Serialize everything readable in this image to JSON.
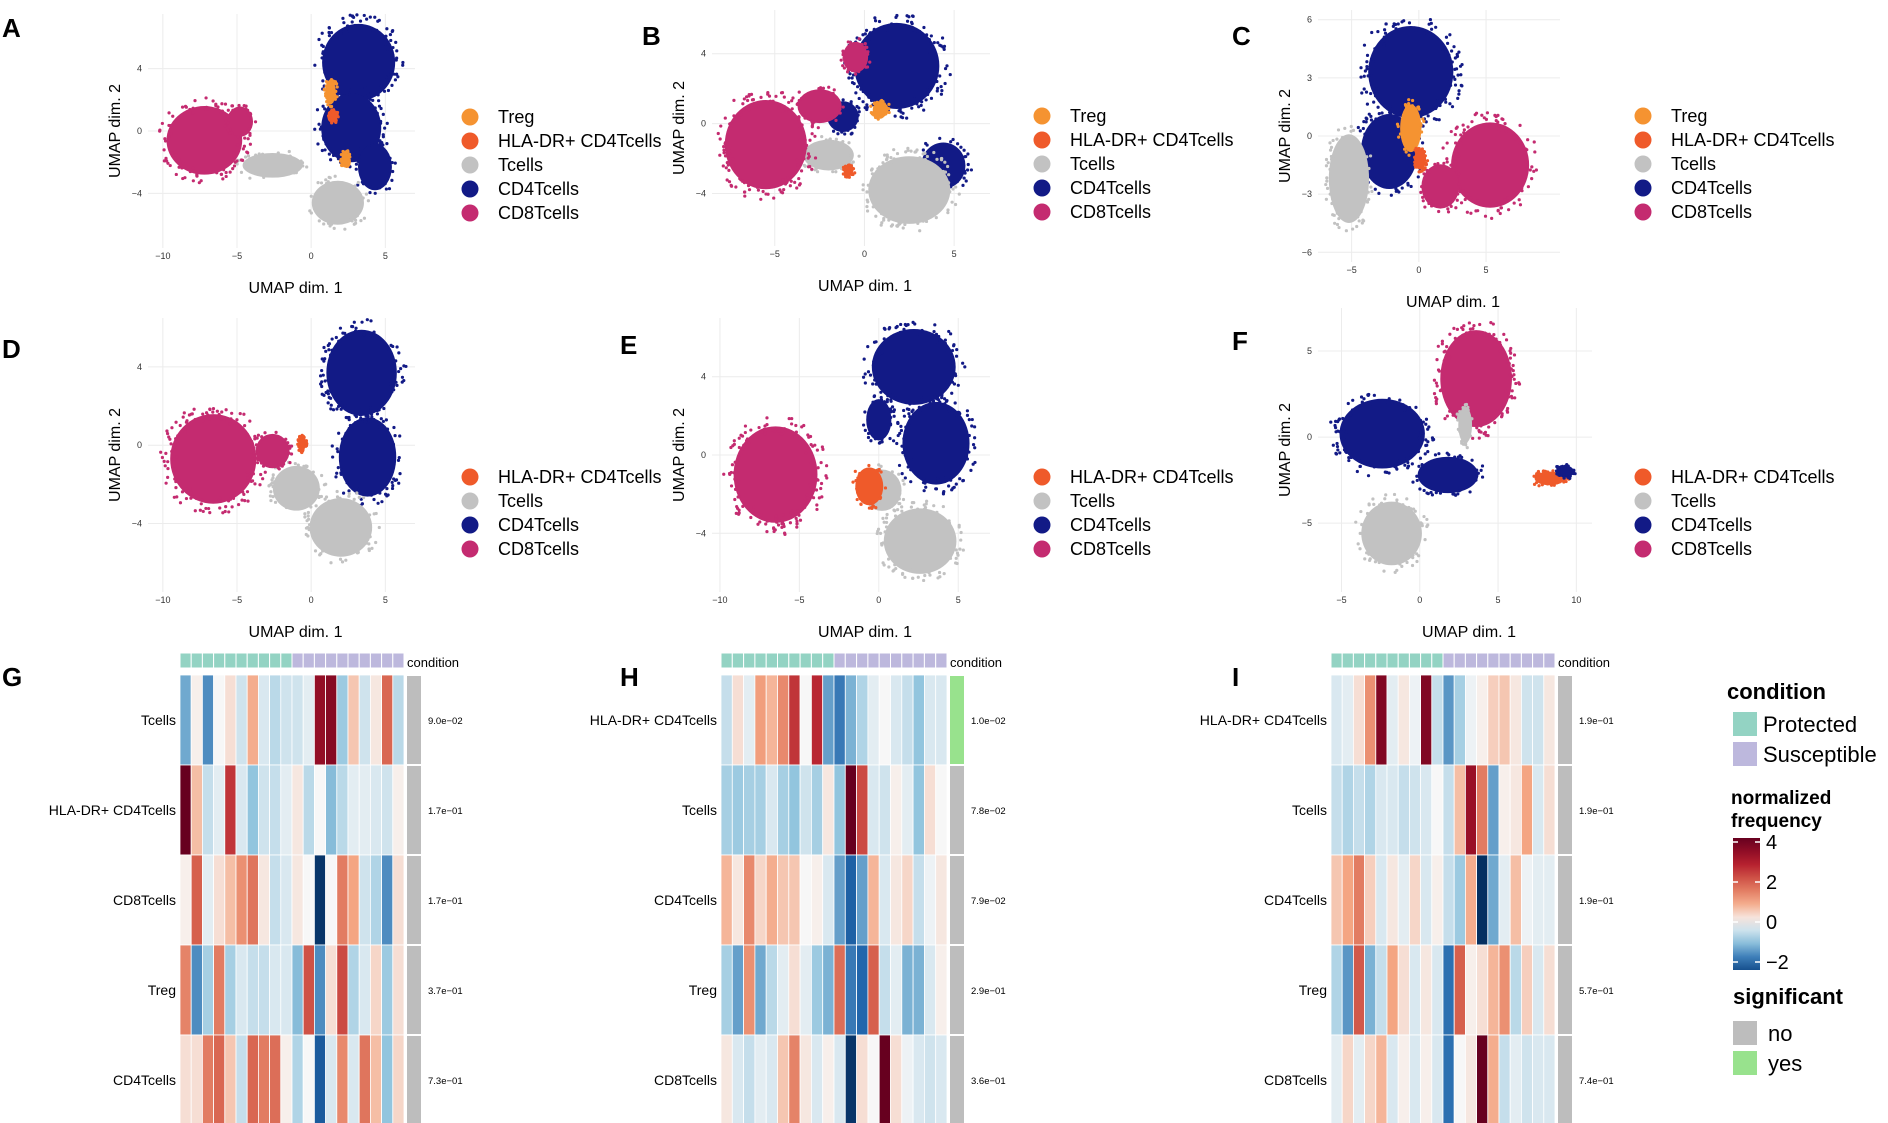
{
  "colors": {
    "Treg": "#F59331",
    "HLA-DR+ CD4Tcells": "#EF5A2A",
    "Tcells": "#C2C2C2",
    "CD4Tcells": "#121A86",
    "CD8Tcells": "#C42B70",
    "Protected": "#93D3C3",
    "Susceptible": "#BDB8DD",
    "sig_no": "#BDBDBD",
    "sig_yes": "#98E28D"
  },
  "chart_data": [
    {
      "panel": "A",
      "type": "scatter",
      "xlabel": "UMAP dim. 1",
      "ylabel": "UMAP dim. 2",
      "xlim": [
        -11,
        7
      ],
      "ylim": [
        -7.5,
        7.5
      ],
      "xticks": [
        -10,
        -5,
        0,
        5
      ],
      "yticks": [
        -4,
        0,
        4
      ],
      "legend": [
        "Treg",
        "HLA-DR+ CD4Tcells",
        "Tcells",
        "CD4Tcells",
        "CD8Tcells"
      ],
      "clusters": [
        {
          "celltype": "CD4Tcells",
          "x": 3.2,
          "y": 4.4,
          "rx": 2.8,
          "ry": 2.8
        },
        {
          "celltype": "CD4Tcells",
          "x": 2.7,
          "y": 0.2,
          "rx": 2.3,
          "ry": 2.5
        },
        {
          "celltype": "CD4Tcells",
          "x": 4.3,
          "y": -2.3,
          "rx": 1.3,
          "ry": 1.7
        },
        {
          "celltype": "Tcells",
          "x": 1.8,
          "y": -4.6,
          "rx": 2.0,
          "ry": 1.6
        },
        {
          "celltype": "Tcells",
          "x": -2.6,
          "y": -2.2,
          "rx": 2.3,
          "ry": 0.9
        },
        {
          "celltype": "CD8Tcells",
          "x": -7.2,
          "y": -0.6,
          "rx": 2.9,
          "ry": 2.5
        },
        {
          "celltype": "CD8Tcells",
          "x": -4.8,
          "y": 0.6,
          "rx": 1.0,
          "ry": 1.1
        },
        {
          "celltype": "Treg",
          "x": 1.3,
          "y": 2.5,
          "rx": 0.4,
          "ry": 0.9
        },
        {
          "celltype": "Treg",
          "x": 2.3,
          "y": -1.8,
          "rx": 0.3,
          "ry": 0.5
        },
        {
          "celltype": "HLA-DR+ CD4Tcells",
          "x": 1.5,
          "y": 0.9,
          "rx": 0.3,
          "ry": 0.4
        }
      ]
    },
    {
      "panel": "B",
      "type": "scatter",
      "xlabel": "UMAP dim. 1",
      "ylabel": "UMAP dim. 2",
      "xlim": [
        -8.5,
        7
      ],
      "ylim": [
        -7,
        6.5
      ],
      "xticks": [
        -5,
        0,
        5
      ],
      "yticks": [
        -4,
        0,
        4
      ],
      "legend": [
        "Treg",
        "HLA-DR+ CD4Tcells",
        "Tcells",
        "CD4Tcells",
        "CD8Tcells"
      ],
      "clusters": [
        {
          "celltype": "CD4Tcells",
          "x": 1.8,
          "y": 3.3,
          "rx": 2.7,
          "ry": 2.8
        },
        {
          "celltype": "CD4Tcells",
          "x": 4.4,
          "y": -2.4,
          "rx": 1.4,
          "ry": 1.5
        },
        {
          "celltype": "CD4Tcells",
          "x": -1.2,
          "y": 0.4,
          "rx": 1.0,
          "ry": 1.0
        },
        {
          "celltype": "Tcells",
          "x": 2.5,
          "y": -3.8,
          "rx": 2.6,
          "ry": 2.2
        },
        {
          "celltype": "Tcells",
          "x": -2.0,
          "y": -1.8,
          "rx": 1.6,
          "ry": 1.0
        },
        {
          "celltype": "CD8Tcells",
          "x": -5.5,
          "y": -1.2,
          "rx": 2.6,
          "ry": 2.9
        },
        {
          "celltype": "CD8Tcells",
          "x": -2.5,
          "y": 1.0,
          "rx": 1.4,
          "ry": 1.1
        },
        {
          "celltype": "CD8Tcells",
          "x": -0.5,
          "y": 3.8,
          "rx": 0.8,
          "ry": 1.0
        },
        {
          "celltype": "Treg",
          "x": 0.9,
          "y": 0.8,
          "rx": 0.5,
          "ry": 0.5
        },
        {
          "celltype": "HLA-DR+ CD4Tcells",
          "x": -0.9,
          "y": -2.7,
          "rx": 0.3,
          "ry": 0.3
        }
      ]
    },
    {
      "panel": "C",
      "type": "scatter",
      "xlabel": "UMAP dim. 1",
      "ylabel": "UMAP dim. 2",
      "xlim": [
        -7.5,
        10.5
      ],
      "ylim": [
        -6.5,
        6.5
      ],
      "xticks": [
        -5,
        0,
        5
      ],
      "yticks": [
        -6,
        -3,
        0,
        3,
        6
      ],
      "legend": [
        "Treg",
        "HLA-DR+ CD4Tcells",
        "Tcells",
        "CD4Tcells",
        "CD8Tcells"
      ],
      "clusters": [
        {
          "celltype": "CD4Tcells",
          "x": -0.6,
          "y": 3.3,
          "rx": 3.6,
          "ry": 2.7
        },
        {
          "celltype": "CD4Tcells",
          "x": -2.2,
          "y": -0.8,
          "rx": 2.4,
          "ry": 2.2
        },
        {
          "celltype": "Tcells",
          "x": -5.2,
          "y": -2.2,
          "rx": 1.7,
          "ry": 2.6
        },
        {
          "celltype": "CD8Tcells",
          "x": 5.3,
          "y": -1.5,
          "rx": 3.3,
          "ry": 2.5
        },
        {
          "celltype": "CD8Tcells",
          "x": 1.6,
          "y": -2.6,
          "rx": 1.6,
          "ry": 1.3
        },
        {
          "celltype": "Treg",
          "x": -0.6,
          "y": 0.4,
          "rx": 0.9,
          "ry": 1.4
        },
        {
          "celltype": "HLA-DR+ CD4Tcells",
          "x": 0.1,
          "y": -1.2,
          "rx": 0.5,
          "ry": 0.6
        }
      ]
    },
    {
      "panel": "D",
      "type": "scatter",
      "xlabel": "UMAP dim. 1",
      "ylabel": "UMAP dim. 2",
      "xlim": [
        -11,
        7
      ],
      "ylim": [
        -7.5,
        6.5
      ],
      "xticks": [
        -10,
        -5,
        0,
        5
      ],
      "yticks": [
        -4,
        0,
        4
      ],
      "legend": [
        "HLA-DR+ CD4Tcells",
        "Tcells",
        "CD4Tcells",
        "CD8Tcells"
      ],
      "clusters": [
        {
          "celltype": "CD4Tcells",
          "x": 3.4,
          "y": 3.7,
          "rx": 2.7,
          "ry": 2.5
        },
        {
          "celltype": "CD4Tcells",
          "x": 3.8,
          "y": -0.6,
          "rx": 2.2,
          "ry": 2.3
        },
        {
          "celltype": "Tcells",
          "x": 2.0,
          "y": -4.2,
          "rx": 2.4,
          "ry": 1.7
        },
        {
          "celltype": "Tcells",
          "x": -1.0,
          "y": -2.2,
          "rx": 1.8,
          "ry": 1.3
        },
        {
          "celltype": "CD8Tcells",
          "x": -6.6,
          "y": -0.7,
          "rx": 3.3,
          "ry": 2.6
        },
        {
          "celltype": "CD8Tcells",
          "x": -2.6,
          "y": -0.3,
          "rx": 1.3,
          "ry": 1.0
        },
        {
          "celltype": "HLA-DR+ CD4Tcells",
          "x": -0.6,
          "y": 0.1,
          "rx": 0.3,
          "ry": 0.4
        }
      ]
    },
    {
      "panel": "E",
      "type": "scatter",
      "xlabel": "UMAP dim. 1",
      "ylabel": "UMAP dim. 2",
      "xlim": [
        -10.5,
        7
      ],
      "ylim": [
        -7,
        7
      ],
      "xticks": [
        -10,
        -5,
        0,
        5
      ],
      "yticks": [
        -4,
        0,
        4
      ],
      "legend": [
        "HLA-DR+ CD4Tcells",
        "Tcells",
        "CD4Tcells",
        "CD8Tcells"
      ],
      "clusters": [
        {
          "celltype": "CD4Tcells",
          "x": 2.2,
          "y": 4.5,
          "rx": 3.0,
          "ry": 2.2
        },
        {
          "celltype": "CD4Tcells",
          "x": 3.6,
          "y": 0.6,
          "rx": 2.4,
          "ry": 2.4
        },
        {
          "celltype": "CD4Tcells",
          "x": 0.0,
          "y": 1.8,
          "rx": 0.9,
          "ry": 1.2
        },
        {
          "celltype": "Tcells",
          "x": 2.6,
          "y": -4.4,
          "rx": 2.6,
          "ry": 1.9
        },
        {
          "celltype": "Tcells",
          "x": 0.2,
          "y": -1.8,
          "rx": 1.4,
          "ry": 1.2
        },
        {
          "celltype": "CD8Tcells",
          "x": -6.5,
          "y": -1.0,
          "rx": 3.0,
          "ry": 2.8
        },
        {
          "celltype": "HLA-DR+ CD4Tcells",
          "x": -0.6,
          "y": -1.6,
          "rx": 1.0,
          "ry": 1.1
        }
      ]
    },
    {
      "panel": "F",
      "type": "scatter",
      "xlabel": "UMAP dim. 1",
      "ylabel": "UMAP dim. 2",
      "xlim": [
        -6.5,
        11
      ],
      "ylim": [
        -9,
        7.5
      ],
      "xticks": [
        -5,
        0,
        5,
        10
      ],
      "yticks": [
        -5,
        0,
        5
      ],
      "legend": [
        "HLA-DR+ CD4Tcells",
        "Tcells",
        "CD4Tcells",
        "CD8Tcells"
      ],
      "clusters": [
        {
          "celltype": "CD8Tcells",
          "x": 3.6,
          "y": 3.4,
          "rx": 2.6,
          "ry": 3.2
        },
        {
          "celltype": "CD4Tcells",
          "x": -2.4,
          "y": 0.2,
          "rx": 3.1,
          "ry": 2.3
        },
        {
          "celltype": "CD4Tcells",
          "x": 1.8,
          "y": -2.2,
          "rx": 2.2,
          "ry": 1.2
        },
        {
          "celltype": "Tcells",
          "x": -1.8,
          "y": -5.6,
          "rx": 2.2,
          "ry": 2.1
        },
        {
          "celltype": "Tcells",
          "x": 2.9,
          "y": 0.7,
          "rx": 0.5,
          "ry": 1.2
        },
        {
          "celltype": "HLA-DR+ CD4Tcells",
          "x": 8.3,
          "y": -2.4,
          "rx": 1.1,
          "ry": 0.45
        },
        {
          "celltype": "CD4Tcells",
          "x": 9.3,
          "y": -2.0,
          "rx": 0.6,
          "ry": 0.4
        }
      ]
    },
    {
      "panel": "G",
      "type": "heatmap",
      "rows": [
        "Tcells",
        "HLA-DR+ CD4Tcells",
        "CD8Tcells",
        "Treg",
        "CD4Tcells"
      ],
      "pvalues": [
        "9.0e−02",
        "1.7e−01",
        "1.7e−01",
        "3.7e−01",
        "7.3e−01"
      ],
      "significant": [
        "no",
        "no",
        "no",
        "no",
        "no"
      ],
      "conditions": [
        "P",
        "P",
        "P",
        "P",
        "P",
        "P",
        "P",
        "P",
        "P",
        "P",
        "S",
        "S",
        "S",
        "S",
        "S",
        "S",
        "S",
        "S",
        "S",
        "S"
      ],
      "values": [
        [
          -1.3,
          0.1,
          -1.6,
          0.0,
          0.3,
          -0.4,
          0.9,
          -0.3,
          -0.6,
          -0.4,
          -0.4,
          -0.2,
          3.5,
          3.7,
          -0.9,
          0.6,
          -0.4,
          0.2,
          1.9,
          -0.6
        ],
        [
          4.2,
          0.7,
          -0.5,
          -0.2,
          2.6,
          -0.3,
          -1.0,
          -0.4,
          -0.5,
          -0.2,
          0.2,
          -0.6,
          0.0,
          -1.1,
          -0.6,
          -0.2,
          -0.2,
          -0.3,
          -0.4,
          0.1
        ],
        [
          0.1,
          2.0,
          -0.2,
          0.3,
          0.7,
          1.3,
          1.7,
          0.2,
          -0.5,
          -0.3,
          0.2,
          0.0,
          -2.9,
          0.0,
          1.6,
          1.0,
          -0.4,
          -0.7,
          -1.6,
          0.3
        ],
        [
          1.5,
          -1.6,
          -0.8,
          1.6,
          -0.8,
          -0.3,
          -0.5,
          -0.5,
          -0.3,
          -0.3,
          -1.1,
          2.2,
          -1.6,
          0.3,
          2.3,
          -0.7,
          -0.3,
          0.4,
          -0.9,
          0.3
        ],
        [
          0.3,
          0.3,
          1.6,
          1.9,
          0.6,
          -0.5,
          1.9,
          1.6,
          1.8,
          0.1,
          -0.7,
          0.0,
          -2.2,
          -0.3,
          1.4,
          -0.3,
          1.7,
          0.7,
          -1.0,
          0.4
        ]
      ]
    },
    {
      "panel": "H",
      "type": "heatmap",
      "rows": [
        "HLA-DR+ CD4Tcells",
        "Tcells",
        "CD4Tcells",
        "Treg",
        "CD8Tcells"
      ],
      "pvalues": [
        "1.0e−02",
        "7.8e−02",
        "7.9e−02",
        "2.9e−01",
        "3.6e−01"
      ],
      "significant": [
        "yes",
        "no",
        "no",
        "no",
        "no"
      ],
      "conditions": [
        "P",
        "P",
        "P",
        "P",
        "P",
        "P",
        "P",
        "P",
        "P",
        "P",
        "S",
        "S",
        "S",
        "S",
        "S",
        "S",
        "S",
        "S",
        "S",
        "S"
      ],
      "values": [
        [
          -0.5,
          0.3,
          -0.2,
          1.1,
          0.8,
          1.4,
          2.6,
          0.0,
          2.8,
          -1.4,
          -1.8,
          -1.2,
          -0.7,
          -0.2,
          0.0,
          -0.3,
          -0.5,
          -1.0,
          -0.3,
          -0.3
        ],
        [
          -0.8,
          -0.9,
          -0.8,
          -0.8,
          -0.3,
          -0.8,
          -1.0,
          -0.4,
          -0.8,
          0.2,
          -1.0,
          4.2,
          2.3,
          -0.3,
          -0.4,
          0.1,
          -0.2,
          -1.0,
          0.3,
          0.0
        ],
        [
          0.8,
          0.2,
          1.4,
          0.4,
          0.9,
          0.6,
          0.6,
          0.0,
          0.1,
          -0.3,
          -1.4,
          -2.1,
          -1.4,
          0.8,
          -0.3,
          0.2,
          0.4,
          -0.5,
          -0.1,
          0.2
        ],
        [
          -0.8,
          -1.4,
          1.3,
          -1.3,
          -0.6,
          -0.2,
          0.3,
          -0.2,
          -0.9,
          -1.2,
          1.8,
          -1.8,
          -2.0,
          2.0,
          -0.5,
          -0.2,
          -1.2,
          -1.2,
          -0.3,
          0.1
        ],
        [
          0.2,
          -0.3,
          -0.5,
          -0.2,
          -0.3,
          0.6,
          1.5,
          0.2,
          -0.3,
          0.1,
          -0.3,
          -2.9,
          0.3,
          0.0,
          4.2,
          0.3,
          -0.1,
          -0.3,
          -0.4,
          -0.3
        ]
      ]
    },
    {
      "panel": "I",
      "type": "heatmap",
      "rows": [
        "HLA-DR+ CD4Tcells",
        "Tcells",
        "CD4Tcells",
        "Treg",
        "CD8Tcells"
      ],
      "pvalues": [
        "1.9e−01",
        "1.9e−01",
        "1.9e−01",
        "5.7e−01",
        "7.4e−01"
      ],
      "significant": [
        "no",
        "no",
        "no",
        "no",
        "no"
      ],
      "conditions": [
        "P",
        "P",
        "P",
        "P",
        "P",
        "P",
        "P",
        "P",
        "P",
        "P",
        "S",
        "S",
        "S",
        "S",
        "S",
        "S",
        "S",
        "S",
        "S",
        "S"
      ],
      "values": [
        [
          -0.3,
          -0.2,
          0.3,
          1.3,
          3.8,
          -0.2,
          0.2,
          -0.1,
          3.8,
          -0.5,
          -1.5,
          -0.8,
          -0.1,
          0.1,
          0.5,
          0.6,
          0.2,
          -0.4,
          -0.4,
          0.2
        ],
        [
          -0.5,
          -0.7,
          -0.5,
          -0.7,
          -0.3,
          -0.3,
          -0.5,
          -0.4,
          -0.3,
          0.0,
          -0.5,
          0.7,
          3.4,
          1.6,
          -1.4,
          0.1,
          0.2,
          1.0,
          -0.3,
          0.3
        ],
        [
          0.6,
          1.0,
          1.6,
          0.5,
          -0.3,
          0.2,
          -0.2,
          0.4,
          -0.3,
          0.1,
          -0.5,
          -0.9,
          0.9,
          -3.0,
          -1.3,
          -0.2,
          0.7,
          -0.1,
          -0.2,
          -0.2
        ],
        [
          -0.7,
          -1.5,
          2.1,
          -1.2,
          -0.5,
          1.0,
          0.3,
          -0.3,
          0.2,
          -0.3,
          -1.9,
          2.0,
          0.1,
          0.3,
          0.8,
          1.3,
          -0.6,
          0.5,
          -0.3,
          0.3
        ],
        [
          -0.2,
          0.4,
          -0.2,
          0.4,
          0.8,
          -0.3,
          0.1,
          -0.3,
          0.1,
          -0.3,
          -1.9,
          0.0,
          0.2,
          4.2,
          0.9,
          -0.5,
          -0.2,
          -0.4,
          -0.3,
          -0.3
        ]
      ]
    }
  ],
  "legend": {
    "condition_title": "condition",
    "condition_items": [
      "Protected",
      "Susceptible"
    ],
    "freq_title_1": "normalized",
    "freq_title_2": "frequency",
    "freq_ticks": [
      "4",
      "2",
      "0",
      "−2"
    ],
    "freq_tick_values": [
      4,
      2,
      0,
      -2
    ],
    "sig_title": "significant",
    "sig_items": [
      "no",
      "yes"
    ]
  },
  "condition_label": "condition"
}
